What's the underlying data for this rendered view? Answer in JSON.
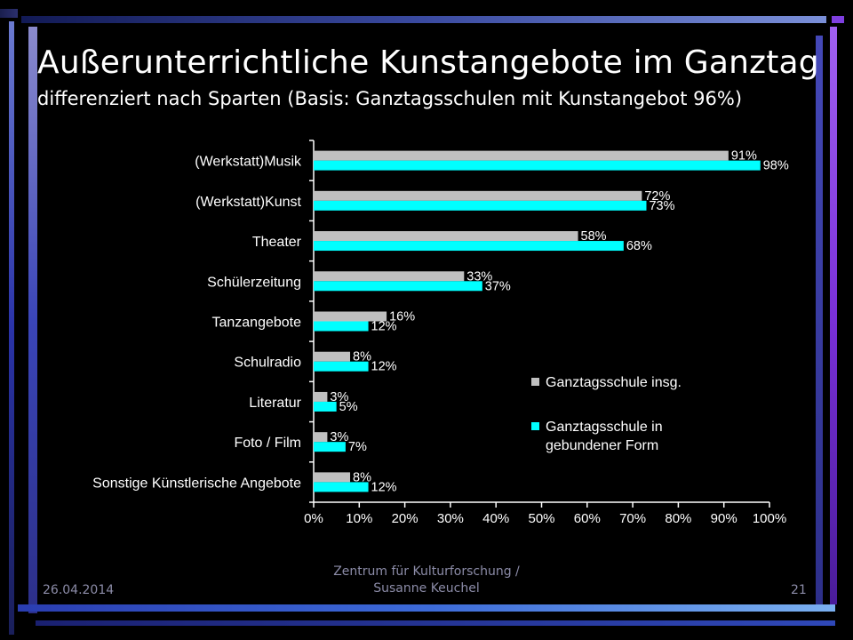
{
  "slide": {
    "title": "Außerunterrichtliche Kunstangebote im Ganztag",
    "subtitle": "differenziert nach Sparten (Basis: Ganztagsschulen mit Kunstangebot 96%)",
    "footer_date": "26.04.2014",
    "footer_center_line1": "Zentrum für Kulturforschung /",
    "footer_center_line2": "Susanne Keuchel",
    "page_number": "21"
  },
  "colors": {
    "background": "#000000",
    "series1": "#c0c0c0",
    "series2": "#00ffff",
    "axis": "#ffffff"
  },
  "chart_data": {
    "type": "bar",
    "orientation": "horizontal",
    "categories": [
      "(Werkstatt)Musik",
      "(Werkstatt)Kunst",
      "Theater",
      "Schülerzeitung",
      "Tanzangebote",
      "Schulradio",
      "Literatur",
      "Foto / Film",
      "Sonstige Künstlerische Angebote"
    ],
    "series": [
      {
        "name": "Ganztagsschule insg.",
        "values": [
          91,
          72,
          58,
          33,
          16,
          8,
          3,
          3,
          8
        ],
        "labels": [
          "91%",
          "72%",
          "58%",
          "33%",
          "16%",
          "8%",
          "3%",
          "3%",
          "8%"
        ]
      },
      {
        "name": "Ganztagsschule in gebundener Form",
        "values": [
          98,
          73,
          68,
          37,
          12,
          12,
          5,
          7,
          12
        ],
        "labels": [
          "98%",
          "73%",
          "68%",
          "37%",
          "12%",
          "12%",
          "5%",
          "7%",
          "12%"
        ]
      }
    ],
    "legend_lines": [
      [
        "Ganztagsschule insg."
      ],
      [
        "Ganztagsschule in",
        "gebundener Form"
      ]
    ],
    "xlim": [
      0,
      100
    ],
    "xticks": [
      "0%",
      "10%",
      "20%",
      "30%",
      "40%",
      "50%",
      "60%",
      "70%",
      "80%",
      "90%",
      "100%"
    ],
    "grid": false,
    "legend_position": "right"
  }
}
